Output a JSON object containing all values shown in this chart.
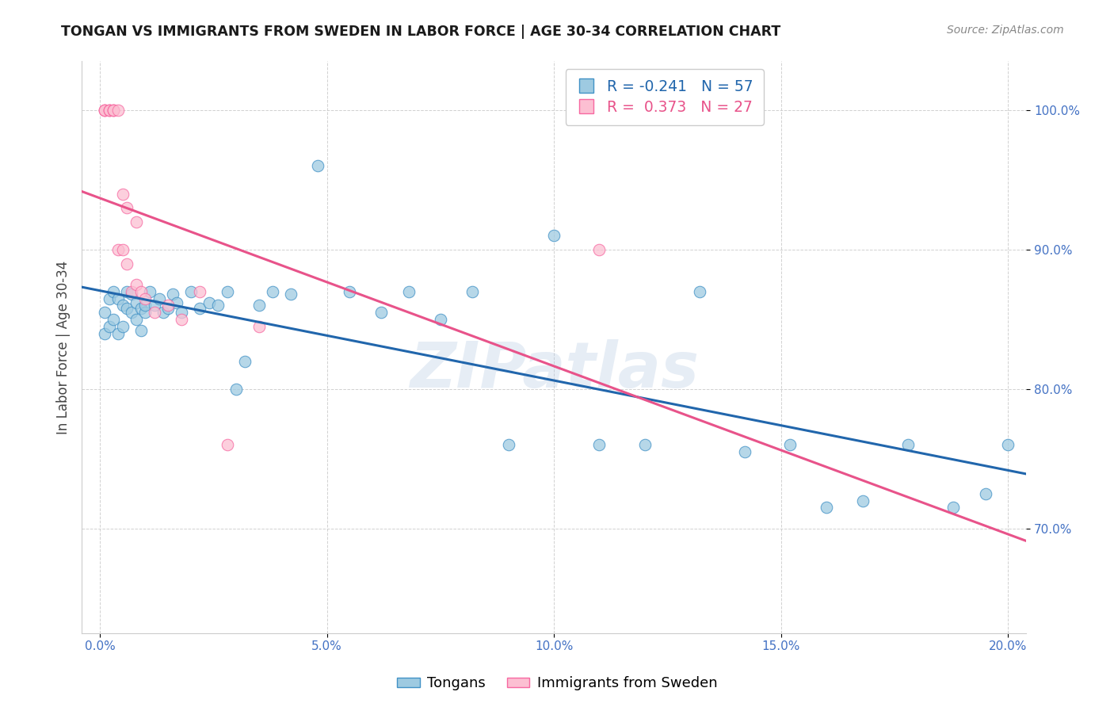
{
  "title": "TONGAN VS IMMIGRANTS FROM SWEDEN IN LABOR FORCE | AGE 30-34 CORRELATION CHART",
  "source": "Source: ZipAtlas.com",
  "ylabel": "In Labor Force | Age 30-34",
  "yticks": [
    0.7,
    0.8,
    0.9,
    1.0
  ],
  "ytick_labels": [
    "70.0%",
    "80.0%",
    "90.0%",
    "100.0%"
  ],
  "xticks": [
    0.0,
    0.05,
    0.1,
    0.15,
    0.2
  ],
  "xlim": [
    -0.004,
    0.204
  ],
  "ylim": [
    0.625,
    1.035
  ],
  "watermark_text": "ZIPatlas",
  "legend_blue_label": "Tongans",
  "legend_pink_label": "Immigrants from Sweden",
  "blue_R": -0.241,
  "blue_N": 57,
  "pink_R": 0.373,
  "pink_N": 27,
  "blue_color": "#9ecae1",
  "pink_color": "#fcbfd2",
  "blue_edge_color": "#4292c6",
  "pink_edge_color": "#f768a1",
  "blue_line_color": "#2166ac",
  "pink_line_color": "#e8538a",
  "blue_points_x": [
    0.001,
    0.001,
    0.002,
    0.002,
    0.003,
    0.003,
    0.004,
    0.004,
    0.005,
    0.005,
    0.006,
    0.006,
    0.007,
    0.007,
    0.008,
    0.008,
    0.009,
    0.009,
    0.01,
    0.01,
    0.011,
    0.012,
    0.013,
    0.014,
    0.015,
    0.016,
    0.017,
    0.018,
    0.02,
    0.022,
    0.024,
    0.026,
    0.028,
    0.03,
    0.032,
    0.035,
    0.038,
    0.042,
    0.048,
    0.055,
    0.062,
    0.068,
    0.075,
    0.082,
    0.09,
    0.1,
    0.11,
    0.12,
    0.132,
    0.142,
    0.152,
    0.16,
    0.168,
    0.178,
    0.188,
    0.195,
    0.2
  ],
  "blue_points_y": [
    0.855,
    0.84,
    0.865,
    0.845,
    0.87,
    0.85,
    0.865,
    0.84,
    0.86,
    0.845,
    0.858,
    0.87,
    0.855,
    0.868,
    0.85,
    0.862,
    0.858,
    0.842,
    0.855,
    0.86,
    0.87,
    0.86,
    0.865,
    0.855,
    0.858,
    0.868,
    0.862,
    0.855,
    0.87,
    0.858,
    0.862,
    0.86,
    0.87,
    0.8,
    0.82,
    0.86,
    0.87,
    0.868,
    0.96,
    0.87,
    0.855,
    0.87,
    0.85,
    0.87,
    0.76,
    0.91,
    0.76,
    0.76,
    0.87,
    0.755,
    0.76,
    0.715,
    0.72,
    0.76,
    0.715,
    0.725,
    0.76
  ],
  "pink_points_x": [
    0.001,
    0.001,
    0.001,
    0.002,
    0.002,
    0.002,
    0.003,
    0.003,
    0.003,
    0.004,
    0.004,
    0.005,
    0.005,
    0.006,
    0.006,
    0.007,
    0.008,
    0.008,
    0.009,
    0.01,
    0.012,
    0.015,
    0.018,
    0.022,
    0.028,
    0.035,
    0.11
  ],
  "pink_points_y": [
    1.0,
    1.0,
    1.0,
    1.0,
    1.0,
    1.0,
    1.0,
    1.0,
    1.0,
    1.0,
    0.9,
    0.94,
    0.9,
    0.93,
    0.89,
    0.87,
    0.92,
    0.875,
    0.87,
    0.865,
    0.855,
    0.86,
    0.85,
    0.87,
    0.76,
    0.845,
    0.9
  ],
  "background_color": "#ffffff",
  "grid_color": "#cccccc"
}
